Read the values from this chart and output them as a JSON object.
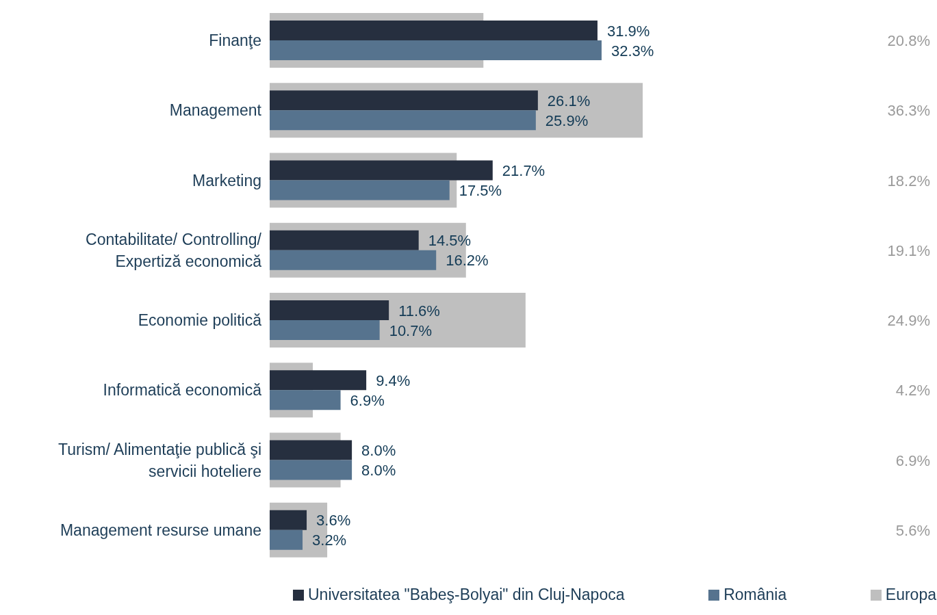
{
  "chart_data": {
    "type": "bar",
    "orientation": "horizontal",
    "categories": [
      "Finanţe",
      "Management",
      "Marketing",
      "Contabilitate/ Controlling/ Expertiză economică",
      "Economie politică",
      "Informatică economică",
      "Turism/ Alimentaţie publică şi servicii hoteliere",
      "Management resurse umane"
    ],
    "series": [
      {
        "name": "Universitatea \"Babeş-Bolyai\" din Cluj-Napoca",
        "color": "#262f3f",
        "values": [
          31.9,
          26.1,
          21.7,
          14.5,
          11.6,
          9.4,
          8.0,
          3.6
        ],
        "value_labels": [
          "31.9%",
          "26.1%",
          "21.7%",
          "14.5%",
          "11.6%",
          "9.4%",
          "8.0%",
          "3.6%"
        ]
      },
      {
        "name": "România",
        "color": "#56738e",
        "values": [
          32.3,
          25.9,
          17.5,
          16.2,
          10.7,
          6.9,
          8.0,
          3.2
        ],
        "value_labels": [
          "32.3%",
          "25.9%",
          "17.5%",
          "16.2%",
          "10.7%",
          "6.9%",
          "8.0%",
          "3.2%"
        ]
      },
      {
        "name": "Europa",
        "color": "#bfbfbf",
        "values": [
          20.8,
          36.3,
          18.2,
          19.1,
          24.9,
          4.2,
          6.9,
          5.6
        ],
        "value_labels": [
          "20.8%",
          "36.3%",
          "18.2%",
          "19.1%",
          "24.9%",
          "4.2%",
          "6.9%",
          "5.6%"
        ]
      }
    ],
    "legend": "bottom"
  }
}
